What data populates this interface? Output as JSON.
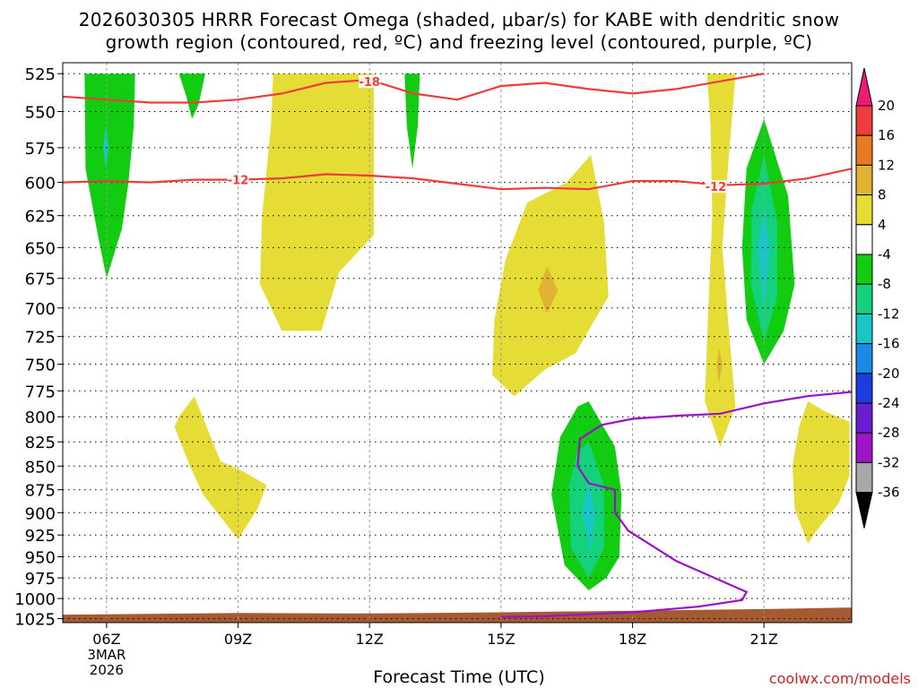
{
  "title": {
    "line1": "2026030305 HRRR Forecast Omega (shaded, μbar/s) for KABE with dendritic snow",
    "line2": "growth region (contoured, red, ºC) and freezing level (contoured, purple, ºC)"
  },
  "credit": "coolwx.com/models",
  "chart_data": {
    "type": "time-height cross section",
    "xlabel": "Forecast Time (UTC)",
    "ylabel": "",
    "x_range_hours_utc": [
      5,
      23
    ],
    "x_ticks": [
      {
        "hour": 6,
        "label": "06Z",
        "sub": [
          "3MAR",
          "2026"
        ]
      },
      {
        "hour": 9,
        "label": "09Z"
      },
      {
        "hour": 12,
        "label": "12Z"
      },
      {
        "hour": 15,
        "label": "15Z"
      },
      {
        "hour": 18,
        "label": "18Z"
      },
      {
        "hour": 21,
        "label": "21Z"
      }
    ],
    "pressure_levels_mb": [
      525,
      550,
      575,
      600,
      625,
      650,
      675,
      700,
      725,
      750,
      775,
      800,
      825,
      850,
      875,
      900,
      925,
      950,
      975,
      1000,
      1025
    ],
    "y_scale": "log-pressure",
    "grid": "dotted",
    "colorbar": {
      "units": "μbar/s",
      "labels": [
        "20",
        "16",
        "12",
        "8",
        "4",
        "-4",
        "-8",
        "-12",
        "-16",
        "-20",
        "-24",
        "-28",
        "-32",
        "-36"
      ],
      "colors": [
        "#ee1a74",
        "#ee3c3c",
        "#e87a22",
        "#e2b232",
        "#e6dc36",
        "#ffffff",
        "#12cc12",
        "#14d27c",
        "#18c6c6",
        "#1a8ae6",
        "#1c3ce0",
        "#6a1ed2",
        "#a014c8",
        "#a8a8a8",
        "#000000"
      ]
    },
    "omega_regions": [
      {
        "color": "#12cc12",
        "value_range": [
          -8,
          -4
        ],
        "poly": [
          [
            6.0,
            525
          ],
          [
            6.65,
            525
          ],
          [
            6.62,
            560
          ],
          [
            6.5,
            600
          ],
          [
            6.35,
            635
          ],
          [
            6.0,
            675
          ],
          [
            5.8,
            640
          ],
          [
            5.52,
            590
          ],
          [
            5.5,
            525
          ]
        ]
      },
      {
        "color": "#18c6c6",
        "value_range": [
          -16,
          -12
        ],
        "poly": [
          [
            5.98,
            560
          ],
          [
            6.05,
            575
          ],
          [
            5.98,
            590
          ],
          [
            5.92,
            575
          ]
        ]
      },
      {
        "color": "#12cc12",
        "value_range": [
          -8,
          -4
        ],
        "poly": [
          [
            7.65,
            525
          ],
          [
            8.25,
            525
          ],
          [
            8.1,
            545
          ],
          [
            7.95,
            555
          ],
          [
            7.82,
            540
          ]
        ]
      },
      {
        "color": "#12cc12",
        "value_range": [
          -8,
          -4
        ],
        "poly": [
          [
            12.8,
            525
          ],
          [
            13.15,
            525
          ],
          [
            13.1,
            560
          ],
          [
            12.98,
            590
          ],
          [
            12.85,
            560
          ]
        ]
      },
      {
        "color": "#e6dc36",
        "value_range": [
          4,
          8
        ],
        "poly": [
          [
            9.8,
            525
          ],
          [
            12.1,
            525
          ],
          [
            12.1,
            640
          ],
          [
            11.3,
            670
          ],
          [
            10.9,
            720
          ],
          [
            10.0,
            720
          ],
          [
            9.5,
            680
          ],
          [
            9.55,
            625
          ],
          [
            9.75,
            560
          ]
        ]
      },
      {
        "color": "#e6dc36",
        "value_range": [
          4,
          8
        ],
        "poly": [
          [
            15.6,
            615
          ],
          [
            16.5,
            600
          ],
          [
            17.05,
            580
          ],
          [
            17.35,
            630
          ],
          [
            17.45,
            690
          ],
          [
            16.7,
            740
          ],
          [
            16.0,
            755
          ],
          [
            15.3,
            780
          ],
          [
            14.8,
            760
          ],
          [
            14.85,
            710
          ],
          [
            15.1,
            660
          ]
        ]
      },
      {
        "color": "#e2b232",
        "value_range": [
          8,
          12
        ],
        "poly": [
          [
            16.05,
            665
          ],
          [
            16.3,
            685
          ],
          [
            16.05,
            705
          ],
          [
            15.85,
            685
          ]
        ]
      },
      {
        "color": "#e6dc36",
        "value_range": [
          4,
          8
        ],
        "poly": [
          [
            19.7,
            525
          ],
          [
            20.35,
            525
          ],
          [
            20.15,
            600
          ],
          [
            20.05,
            650
          ],
          [
            20.2,
            720
          ],
          [
            20.35,
            790
          ],
          [
            20.0,
            830
          ],
          [
            19.65,
            785
          ],
          [
            19.72,
            710
          ],
          [
            19.82,
            625
          ],
          [
            19.78,
            560
          ]
        ]
      },
      {
        "color": "#e2b232",
        "value_range": [
          8,
          12
        ],
        "poly": [
          [
            19.97,
            735
          ],
          [
            20.05,
            750
          ],
          [
            19.97,
            768
          ],
          [
            19.92,
            750
          ]
        ]
      },
      {
        "color": "#12cc12",
        "value_range": [
          -8,
          -4
        ],
        "poly": [
          [
            21.0,
            555
          ],
          [
            21.55,
            610
          ],
          [
            21.7,
            680
          ],
          [
            21.45,
            720
          ],
          [
            21.0,
            750
          ],
          [
            20.6,
            710
          ],
          [
            20.5,
            650
          ],
          [
            20.6,
            590
          ]
        ]
      },
      {
        "color": "#14d27c",
        "value_range": [
          -12,
          -8
        ],
        "poly": [
          [
            21.0,
            580
          ],
          [
            21.3,
            630
          ],
          [
            21.3,
            690
          ],
          [
            21.0,
            730
          ],
          [
            20.7,
            680
          ],
          [
            20.72,
            620
          ]
        ]
      },
      {
        "color": "#18c6c6",
        "value_range": [
          -16,
          -12
        ],
        "poly": [
          [
            21.0,
            620
          ],
          [
            21.15,
            650
          ],
          [
            21.0,
            700
          ],
          [
            20.85,
            650
          ]
        ]
      },
      {
        "color": "#e6dc36",
        "value_range": [
          4,
          8
        ],
        "poly": [
          [
            7.65,
            800
          ],
          [
            8.0,
            780
          ],
          [
            8.6,
            845
          ],
          [
            9.1,
            855
          ],
          [
            9.65,
            870
          ],
          [
            9.45,
            895
          ],
          [
            9.0,
            930
          ],
          [
            8.2,
            880
          ],
          [
            7.9,
            850
          ],
          [
            7.55,
            810
          ]
        ]
      },
      {
        "color": "#12cc12",
        "value_range": [
          -8,
          -4
        ],
        "poly": [
          [
            17.0,
            785
          ],
          [
            17.6,
            830
          ],
          [
            17.75,
            880
          ],
          [
            17.7,
            950
          ],
          [
            17.4,
            975
          ],
          [
            17.0,
            990
          ],
          [
            16.45,
            960
          ],
          [
            16.15,
            880
          ],
          [
            16.35,
            820
          ],
          [
            16.75,
            790
          ]
        ]
      },
      {
        "color": "#14d27c",
        "value_range": [
          -12,
          -8
        ],
        "poly": [
          [
            17.0,
            825
          ],
          [
            17.35,
            870
          ],
          [
            17.35,
            940
          ],
          [
            17.0,
            975
          ],
          [
            16.6,
            940
          ],
          [
            16.55,
            870
          ],
          [
            16.75,
            835
          ]
        ]
      },
      {
        "color": "#18c6c6",
        "value_range": [
          -16,
          -12
        ],
        "poly": [
          [
            17.0,
            865
          ],
          [
            17.15,
            900
          ],
          [
            17.05,
            945
          ],
          [
            16.85,
            900
          ]
        ]
      },
      {
        "color": "#e6dc36",
        "value_range": [
          4,
          8
        ],
        "poly": [
          [
            22.0,
            785
          ],
          [
            22.4,
            795
          ],
          [
            22.95,
            805
          ],
          [
            22.95,
            860
          ],
          [
            22.7,
            890
          ],
          [
            22.2,
            920
          ],
          [
            22.0,
            935
          ],
          [
            21.7,
            895
          ],
          [
            21.65,
            850
          ],
          [
            21.8,
            810
          ]
        ]
      }
    ],
    "dgz_contours": [
      {
        "label": "-18",
        "color": "#ee3c3c",
        "label_at": [
          12.0,
          530
        ],
        "points": [
          [
            5,
            540
          ],
          [
            6,
            542
          ],
          [
            7,
            544
          ],
          [
            8,
            544
          ],
          [
            9,
            542
          ],
          [
            10,
            538
          ],
          [
            11,
            531
          ],
          [
            12,
            529
          ],
          [
            13,
            538
          ],
          [
            14,
            542
          ],
          [
            15,
            533
          ],
          [
            16,
            531
          ],
          [
            17,
            535
          ],
          [
            18,
            538
          ],
          [
            19,
            535
          ],
          [
            20,
            530
          ],
          [
            21,
            525
          ]
        ]
      },
      {
        "label": "-12",
        "color": "#ee3c3c",
        "label_at": [
          9.0,
          598
        ],
        "label2_at": [
          19.9,
          603
        ],
        "points": [
          [
            5,
            600
          ],
          [
            6,
            599
          ],
          [
            7,
            600
          ],
          [
            8,
            598
          ],
          [
            9,
            598
          ],
          [
            10,
            597
          ],
          [
            11,
            594
          ],
          [
            12,
            595
          ],
          [
            13,
            597
          ],
          [
            14,
            601
          ],
          [
            15,
            605
          ],
          [
            16,
            604
          ],
          [
            17,
            605
          ],
          [
            18,
            599
          ],
          [
            19,
            599
          ],
          [
            20,
            602
          ],
          [
            21,
            601
          ],
          [
            22,
            597
          ],
          [
            23,
            590
          ]
        ]
      }
    ],
    "freezing_level": {
      "color": "#9a12c8",
      "points": [
        [
          23,
          776
        ],
        [
          22,
          780
        ],
        [
          21,
          787
        ],
        [
          20,
          797
        ],
        [
          19,
          799
        ],
        [
          18,
          802
        ],
        [
          17.3,
          808
        ],
        [
          16.8,
          822
        ],
        [
          16.75,
          850
        ],
        [
          17.0,
          868
        ],
        [
          17.6,
          875
        ],
        [
          17.6,
          900
        ],
        [
          17.9,
          920
        ],
        [
          19,
          955
        ],
        [
          20,
          978
        ],
        [
          20.6,
          992
        ],
        [
          20.5,
          1002
        ],
        [
          19.5,
          1010
        ],
        [
          18,
          1017
        ],
        [
          16,
          1022
        ],
        [
          15,
          1023
        ]
      ]
    },
    "terrain_color": "#a55a32"
  }
}
